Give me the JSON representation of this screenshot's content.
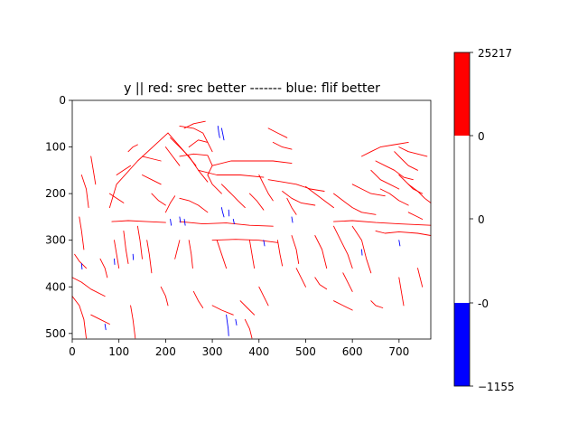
{
  "chart_data": {
    "type": "heatmap",
    "title": "y || red: srec better ------- blue: flif better",
    "xlabel": "",
    "ylabel": "",
    "xlim": [
      0,
      768
    ],
    "ylim": [
      512,
      0
    ],
    "x_ticks": [
      0,
      100,
      200,
      300,
      400,
      500,
      600,
      700
    ],
    "y_ticks": [
      0,
      100,
      200,
      300,
      400,
      500
    ],
    "colorbar": {
      "segments": [
        {
          "from": "0",
          "to": "25217",
          "color": "#ff0000"
        },
        {
          "from": "0",
          "to": "0",
          "color": "#ffffff"
        },
        {
          "from": "-1155",
          "to": "-0",
          "color": "#0000ff"
        }
      ],
      "tick_labels": [
        "25217",
        "0",
        "0",
        "-0",
        "−1155"
      ]
    },
    "background_value": 0,
    "red_edges": [
      [
        [
          205,
          70
        ],
        [
          140,
          130
        ],
        [
          95,
          180
        ],
        [
          80,
          230
        ]
      ],
      [
        [
          205,
          70
        ],
        [
          240,
          110
        ],
        [
          265,
          140
        ]
      ],
      [
        [
          210,
          80
        ],
        [
          250,
          120
        ],
        [
          270,
          150
        ],
        [
          290,
          175
        ]
      ],
      [
        [
          230,
          120
        ],
        [
          260,
          115
        ],
        [
          290,
          118
        ],
        [
          300,
          140
        ]
      ],
      [
        [
          250,
          100
        ],
        [
          270,
          85
        ],
        [
          290,
          90
        ],
        [
          300,
          110
        ]
      ],
      [
        [
          300,
          140
        ],
        [
          340,
          130
        ],
        [
          380,
          130
        ],
        [
          430,
          130
        ],
        [
          470,
          135
        ]
      ],
      [
        [
          270,
          150
        ],
        [
          310,
          160
        ],
        [
          360,
          160
        ],
        [
          410,
          165
        ]
      ],
      [
        [
          300,
          140
        ],
        [
          290,
          160
        ],
        [
          300,
          180
        ],
        [
          320,
          200
        ]
      ],
      [
        [
          230,
          55
        ],
        [
          260,
          60
        ],
        [
          280,
          70
        ],
        [
          290,
          90
        ]
      ],
      [
        [
          240,
          60
        ],
        [
          260,
          50
        ],
        [
          285,
          45
        ]
      ],
      [
        [
          95,
          160
        ],
        [
          110,
          150
        ],
        [
          125,
          140
        ]
      ],
      [
        [
          120,
          110
        ],
        [
          130,
          100
        ],
        [
          140,
          95
        ]
      ],
      [
        [
          80,
          200
        ],
        [
          95,
          210
        ],
        [
          110,
          220
        ]
      ],
      [
        [
          85,
          260
        ],
        [
          120,
          258
        ],
        [
          160,
          260
        ],
        [
          200,
          262
        ]
      ],
      [
        [
          230,
          260
        ],
        [
          280,
          265
        ],
        [
          330,
          263
        ],
        [
          380,
          268
        ],
        [
          430,
          270
        ]
      ],
      [
        [
          300,
          300
        ],
        [
          350,
          298
        ],
        [
          400,
          300
        ],
        [
          440,
          305
        ]
      ],
      [
        [
          220,
          340
        ],
        [
          225,
          320
        ],
        [
          230,
          300
        ]
      ],
      [
        [
          250,
          300
        ],
        [
          255,
          330
        ],
        [
          258,
          360
        ]
      ],
      [
        [
          310,
          300
        ],
        [
          320,
          330
        ],
        [
          330,
          360
        ]
      ],
      [
        [
          380,
          300
        ],
        [
          385,
          330
        ],
        [
          390,
          360
        ]
      ],
      [
        [
          440,
          300
        ],
        [
          445,
          330
        ],
        [
          450,
          355
        ]
      ],
      [
        [
          470,
          290
        ],
        [
          480,
          320
        ],
        [
          485,
          350
        ]
      ],
      [
        [
          520,
          290
        ],
        [
          535,
          320
        ],
        [
          545,
          360
        ]
      ],
      [
        [
          560,
          270
        ],
        [
          575,
          300
        ],
        [
          590,
          330
        ],
        [
          600,
          360
        ]
      ],
      [
        [
          600,
          270
        ],
        [
          620,
          300
        ],
        [
          630,
          340
        ],
        [
          640,
          370
        ]
      ],
      [
        [
          650,
          280
        ],
        [
          670,
          285
        ],
        [
          700,
          282
        ],
        [
          740,
          285
        ],
        [
          768,
          290
        ]
      ],
      [
        [
          560,
          260
        ],
        [
          600,
          258
        ],
        [
          650,
          262
        ],
        [
          700,
          265
        ],
        [
          768,
          268
        ]
      ],
      [
        [
          420,
          170
        ],
        [
          450,
          175
        ],
        [
          480,
          180
        ],
        [
          510,
          190
        ],
        [
          540,
          195
        ]
      ],
      [
        [
          450,
          195
        ],
        [
          470,
          210
        ],
        [
          490,
          220
        ],
        [
          520,
          225
        ]
      ],
      [
        [
          500,
          185
        ],
        [
          520,
          200
        ],
        [
          540,
          215
        ],
        [
          560,
          230
        ]
      ],
      [
        [
          560,
          200
        ],
        [
          580,
          215
        ],
        [
          600,
          230
        ],
        [
          620,
          240
        ],
        [
          650,
          245
        ]
      ],
      [
        [
          600,
          180
        ],
        [
          620,
          190
        ],
        [
          640,
          200
        ],
        [
          670,
          205
        ]
      ],
      [
        [
          620,
          120
        ],
        [
          640,
          110
        ],
        [
          660,
          100
        ],
        [
          690,
          95
        ],
        [
          720,
          90
        ]
      ],
      [
        [
          650,
          130
        ],
        [
          670,
          140
        ],
        [
          690,
          150
        ],
        [
          710,
          165
        ],
        [
          730,
          170
        ]
      ],
      [
        [
          690,
          110
        ],
        [
          705,
          125
        ],
        [
          720,
          140
        ],
        [
          740,
          150
        ]
      ],
      [
        [
          700,
          160
        ],
        [
          715,
          175
        ],
        [
          730,
          190
        ],
        [
          750,
          200
        ]
      ],
      [
        [
          720,
          180
        ],
        [
          740,
          195
        ],
        [
          755,
          210
        ],
        [
          768,
          220
        ]
      ],
      [
        [
          660,
          190
        ],
        [
          680,
          200
        ],
        [
          700,
          215
        ],
        [
          720,
          225
        ]
      ],
      [
        [
          640,
          150
        ],
        [
          660,
          170
        ],
        [
          680,
          180
        ],
        [
          700,
          190
        ]
      ],
      [
        [
          700,
          100
        ],
        [
          720,
          110
        ],
        [
          740,
          115
        ],
        [
          760,
          120
        ]
      ],
      [
        [
          720,
          240
        ],
        [
          740,
          250
        ],
        [
          750,
          255
        ]
      ],
      [
        [
          40,
          120
        ],
        [
          45,
          150
        ],
        [
          50,
          180
        ]
      ],
      [
        [
          20,
          160
        ],
        [
          30,
          190
        ],
        [
          35,
          230
        ]
      ],
      [
        [
          15,
          250
        ],
        [
          20,
          280
        ],
        [
          25,
          320
        ]
      ],
      [
        [
          5,
          330
        ],
        [
          15,
          345
        ],
        [
          30,
          360
        ]
      ],
      [
        [
          0,
          380
        ],
        [
          20,
          390
        ],
        [
          40,
          405
        ],
        [
          70,
          420
        ]
      ],
      [
        [
          0,
          420
        ],
        [
          15,
          440
        ],
        [
          25,
          470
        ],
        [
          30,
          510
        ]
      ],
      [
        [
          40,
          460
        ],
        [
          60,
          470
        ],
        [
          80,
          480
        ]
      ],
      [
        [
          90,
          300
        ],
        [
          95,
          330
        ],
        [
          100,
          360
        ]
      ],
      [
        [
          110,
          280
        ],
        [
          115,
          320
        ],
        [
          120,
          350
        ]
      ],
      [
        [
          140,
          270
        ],
        [
          145,
          300
        ],
        [
          150,
          340
        ]
      ],
      [
        [
          160,
          300
        ],
        [
          165,
          330
        ],
        [
          170,
          370
        ]
      ],
      [
        [
          125,
          440
        ],
        [
          130,
          470
        ],
        [
          135,
          510
        ]
      ],
      [
        [
          200,
          240
        ],
        [
          210,
          220
        ],
        [
          220,
          205
        ]
      ],
      [
        [
          230,
          210
        ],
        [
          250,
          215
        ],
        [
          270,
          225
        ],
        [
          290,
          240
        ]
      ],
      [
        [
          170,
          200
        ],
        [
          185,
          215
        ],
        [
          200,
          225
        ]
      ],
      [
        [
          150,
          160
        ],
        [
          170,
          170
        ],
        [
          190,
          180
        ]
      ],
      [
        [
          200,
          100
        ],
        [
          215,
          120
        ],
        [
          230,
          140
        ]
      ],
      [
        [
          320,
          180
        ],
        [
          340,
          200
        ],
        [
          355,
          215
        ],
        [
          370,
          230
        ]
      ],
      [
        [
          380,
          200
        ],
        [
          395,
          215
        ],
        [
          410,
          235
        ]
      ],
      [
        [
          400,
          160
        ],
        [
          410,
          180
        ],
        [
          420,
          200
        ],
        [
          430,
          215
        ]
      ],
      [
        [
          460,
          210
        ],
        [
          470,
          230
        ],
        [
          480,
          245
        ]
      ],
      [
        [
          300,
          440
        ],
        [
          320,
          450
        ],
        [
          345,
          460
        ]
      ],
      [
        [
          360,
          430
        ],
        [
          375,
          445
        ],
        [
          390,
          460
        ]
      ],
      [
        [
          370,
          470
        ],
        [
          380,
          490
        ],
        [
          385,
          510
        ]
      ],
      [
        [
          560,
          430
        ],
        [
          580,
          440
        ],
        [
          600,
          450
        ]
      ],
      [
        [
          640,
          430
        ],
        [
          650,
          440
        ],
        [
          665,
          445
        ]
      ],
      [
        [
          400,
          400
        ],
        [
          410,
          420
        ],
        [
          420,
          440
        ]
      ],
      [
        [
          260,
          410
        ],
        [
          270,
          430
        ],
        [
          280,
          445
        ]
      ],
      [
        [
          190,
          400
        ],
        [
          200,
          420
        ],
        [
          205,
          440
        ]
      ],
      [
        [
          60,
          340
        ],
        [
          70,
          360
        ],
        [
          75,
          380
        ]
      ],
      [
        [
          480,
          360
        ],
        [
          490,
          380
        ],
        [
          500,
          400
        ]
      ],
      [
        [
          520,
          380
        ],
        [
          530,
          395
        ],
        [
          545,
          405
        ]
      ],
      [
        [
          580,
          370
        ],
        [
          590,
          390
        ],
        [
          600,
          410
        ]
      ],
      [
        [
          700,
          380
        ],
        [
          705,
          410
        ],
        [
          710,
          440
        ]
      ],
      [
        [
          740,
          360
        ],
        [
          745,
          380
        ],
        [
          750,
          400
        ]
      ],
      [
        [
          420,
          60
        ],
        [
          440,
          70
        ],
        [
          460,
          80
        ]
      ],
      [
        [
          430,
          90
        ],
        [
          450,
          100
        ],
        [
          470,
          105
        ]
      ],
      [
        [
          150,
          120
        ],
        [
          170,
          125
        ],
        [
          190,
          130
        ]
      ]
    ],
    "blue_edges": [
      [
        [
          312,
          55
        ],
        [
          314,
          70
        ],
        [
          316,
          80
        ]
      ],
      [
        [
          320,
          60
        ],
        [
          323,
          75
        ],
        [
          325,
          85
        ]
      ],
      [
        [
          320,
          230
        ],
        [
          322,
          240
        ],
        [
          325,
          250
        ]
      ],
      [
        [
          335,
          235
        ],
        [
          336,
          248
        ]
      ],
      [
        [
          345,
          255
        ],
        [
          347,
          265
        ]
      ],
      [
        [
          230,
          250
        ],
        [
          232,
          262
        ]
      ],
      [
        [
          240,
          255
        ],
        [
          242,
          268
        ]
      ],
      [
        [
          210,
          255
        ],
        [
          212,
          268
        ]
      ],
      [
        [
          90,
          340
        ],
        [
          91,
          352
        ]
      ],
      [
        [
          130,
          330
        ],
        [
          131,
          342
        ]
      ],
      [
        [
          330,
          460
        ],
        [
          332,
          475
        ],
        [
          334,
          490
        ],
        [
          335,
          505
        ]
      ],
      [
        [
          350,
          470
        ],
        [
          352,
          482
        ]
      ],
      [
        [
          70,
          480
        ],
        [
          72,
          492
        ]
      ],
      [
        [
          700,
          300
        ],
        [
          702,
          312
        ]
      ],
      [
        [
          20,
          350
        ],
        [
          21,
          362
        ]
      ],
      [
        [
          470,
          250
        ],
        [
          472,
          262
        ]
      ],
      [
        [
          410,
          300
        ],
        [
          412,
          312
        ]
      ],
      [
        [
          620,
          320
        ],
        [
          621,
          332
        ]
      ]
    ]
  }
}
